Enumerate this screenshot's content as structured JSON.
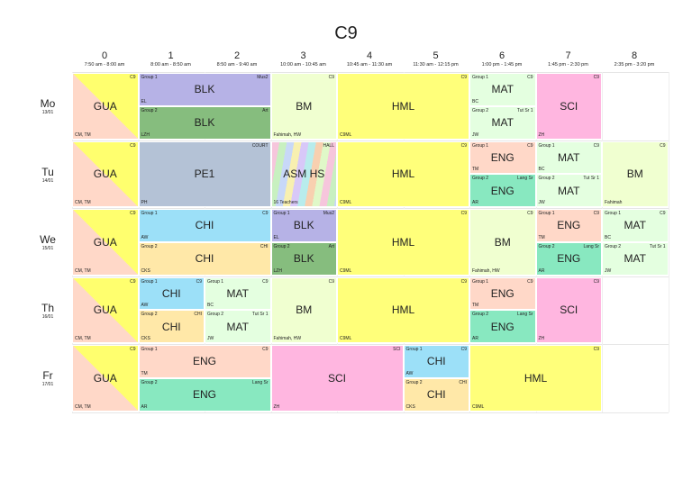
{
  "title": "C9",
  "colors": {
    "gua_top": "#ffff6e",
    "gua_bottom": "#ffd8c8",
    "blk": "#b6b2e6",
    "blk2": "#86bd7e",
    "bm": "#f0ffd0",
    "hml": "#ffff7a",
    "mat": "#e4ffe0",
    "sci": "#ffb6e0",
    "pe": "#b4c2d6",
    "eng_top": "#ffd8c8",
    "eng_bottom": "#88e8c0",
    "chi_top": "#9ce0f8",
    "chi_bottom": "#ffe8a8"
  },
  "periods": [
    {
      "num": "0",
      "time": "7:50 am - 8:00 am"
    },
    {
      "num": "1",
      "time": "8:00 am - 8:50 am"
    },
    {
      "num": "2",
      "time": "8:50 am - 9:40 am"
    },
    {
      "num": "3",
      "time": "10:00 am - 10:45 am"
    },
    {
      "num": "4",
      "time": "10:45 am - 11:30 am"
    },
    {
      "num": "5",
      "time": "11:30 am - 12:15 pm"
    },
    {
      "num": "6",
      "time": "1:00 pm - 1:45 pm"
    },
    {
      "num": "7",
      "time": "1:45 pm - 2:30 pm"
    },
    {
      "num": "8",
      "time": "2:35 pm - 3:20 pm"
    }
  ],
  "days": [
    {
      "day": "Mo",
      "date": "13/01"
    },
    {
      "day": "Tu",
      "date": "14/01"
    },
    {
      "day": "We",
      "date": "15/01"
    },
    {
      "day": "Th",
      "date": "16/01"
    },
    {
      "day": "Fr",
      "date": "17/01"
    }
  ],
  "cells": [
    {
      "day": 0,
      "col": 0,
      "span": 1,
      "half": "full",
      "subj": "GUA",
      "fill": "gua",
      "tl": "",
      "tr": "C9",
      "bl": "CM, TM"
    },
    {
      "day": 0,
      "col": 1,
      "span": 2,
      "half": "top",
      "subj": "BLK",
      "fill": "blk",
      "tl": "Group 1",
      "tr": "Mus2",
      "bl": "EL"
    },
    {
      "day": 0,
      "col": 1,
      "span": 2,
      "half": "bottom",
      "subj": "BLK",
      "fill": "blk2",
      "tl": "Group 2",
      "tr": "Art",
      "bl": "LZH"
    },
    {
      "day": 0,
      "col": 3,
      "span": 1,
      "half": "full",
      "subj": "BM",
      "fill": "bm",
      "tl": "",
      "tr": "C9",
      "bl": "Fahimah, HW"
    },
    {
      "day": 0,
      "col": 4,
      "span": 2,
      "half": "full",
      "subj": "HML",
      "fill": "hml",
      "tl": "",
      "tr": "C9",
      "bl": "C9ML"
    },
    {
      "day": 0,
      "col": 6,
      "span": 1,
      "half": "top",
      "subj": "MAT",
      "fill": "mat",
      "tl": "Group 1",
      "tr": "C9",
      "bl": "BC"
    },
    {
      "day": 0,
      "col": 6,
      "span": 1,
      "half": "bottom",
      "subj": "MAT",
      "fill": "mat",
      "tl": "Group 2",
      "tr": "Tut Sr 1",
      "bl": "JW"
    },
    {
      "day": 0,
      "col": 7,
      "span": 1,
      "half": "full",
      "subj": "SCI",
      "fill": "sci",
      "tl": "",
      "tr": "C9",
      "bl": "ZH"
    },
    {
      "day": 1,
      "col": 0,
      "span": 1,
      "half": "full",
      "subj": "GUA",
      "fill": "gua",
      "tl": "",
      "tr": "C9",
      "bl": "CM, TM"
    },
    {
      "day": 1,
      "col": 1,
      "span": 2,
      "half": "full",
      "subj": "PE1",
      "fill": "pe",
      "tl": "",
      "tr": "COURT",
      "bl": "PH"
    },
    {
      "day": 1,
      "col": 3,
      "span": 1,
      "half": "full",
      "subj": "ASM HS",
      "fill": "stripes",
      "tl": "",
      "tr": "HALL",
      "bl": "16 Teachers"
    },
    {
      "day": 1,
      "col": 4,
      "span": 2,
      "half": "full",
      "subj": "HML",
      "fill": "hml",
      "tl": "",
      "tr": "C9",
      "bl": "C9ML"
    },
    {
      "day": 1,
      "col": 6,
      "span": 1,
      "half": "top",
      "subj": "ENG",
      "fill": "eng_top",
      "tl": "Group 1",
      "tr": "C9",
      "bl": "TM"
    },
    {
      "day": 1,
      "col": 6,
      "span": 1,
      "half": "bottom",
      "subj": "ENG",
      "fill": "eng_bottom",
      "tl": "Group 2",
      "tr": "Lang Sr",
      "bl": "AR"
    },
    {
      "day": 1,
      "col": 7,
      "span": 1,
      "half": "top",
      "subj": "MAT",
      "fill": "mat",
      "tl": "Group 1",
      "tr": "C9",
      "bl": "BC"
    },
    {
      "day": 1,
      "col": 7,
      "span": 1,
      "half": "bottom",
      "subj": "MAT",
      "fill": "mat",
      "tl": "Group 2",
      "tr": "Tut Sr 1",
      "bl": "JW"
    },
    {
      "day": 1,
      "col": 8,
      "span": 1,
      "half": "full",
      "subj": "BM",
      "fill": "bm",
      "tl": "",
      "tr": "C9",
      "bl": "Fahimah"
    },
    {
      "day": 2,
      "col": 0,
      "span": 1,
      "half": "full",
      "subj": "GUA",
      "fill": "gua",
      "tl": "",
      "tr": "C9",
      "bl": "CM, TM"
    },
    {
      "day": 2,
      "col": 1,
      "span": 2,
      "half": "top",
      "subj": "CHI",
      "fill": "chi_top",
      "tl": "Group 1",
      "tr": "C9",
      "bl": "AW"
    },
    {
      "day": 2,
      "col": 1,
      "span": 2,
      "half": "bottom",
      "subj": "CHI",
      "fill": "chi_bottom",
      "tl": "Group 2",
      "tr": "CHI",
      "bl": "CKS"
    },
    {
      "day": 2,
      "col": 3,
      "span": 1,
      "half": "top",
      "subj": "BLK",
      "fill": "blk",
      "tl": "Group 1",
      "tr": "Mus2",
      "bl": "EL"
    },
    {
      "day": 2,
      "col": 3,
      "span": 1,
      "half": "bottom",
      "subj": "BLK",
      "fill": "blk2",
      "tl": "Group 2",
      "tr": "Art",
      "bl": "LZH"
    },
    {
      "day": 2,
      "col": 4,
      "span": 2,
      "half": "full",
      "subj": "HML",
      "fill": "hml",
      "tl": "",
      "tr": "C9",
      "bl": "C9ML"
    },
    {
      "day": 2,
      "col": 6,
      "span": 1,
      "half": "full",
      "subj": "BM",
      "fill": "bm",
      "tl": "",
      "tr": "C9",
      "bl": "Fahimah, HW"
    },
    {
      "day": 2,
      "col": 7,
      "span": 1,
      "half": "top",
      "subj": "ENG",
      "fill": "eng_top",
      "tl": "Group 1",
      "tr": "C9",
      "bl": "TM"
    },
    {
      "day": 2,
      "col": 7,
      "span": 1,
      "half": "bottom",
      "subj": "ENG",
      "fill": "eng_bottom",
      "tl": "Group 2",
      "tr": "Lang Sr",
      "bl": "AR"
    },
    {
      "day": 2,
      "col": 8,
      "span": 1,
      "half": "top",
      "subj": "MAT",
      "fill": "mat",
      "tl": "Group 1",
      "tr": "C9",
      "bl": "BC"
    },
    {
      "day": 2,
      "col": 8,
      "span": 1,
      "half": "bottom",
      "subj": "MAT",
      "fill": "mat",
      "tl": "Group 2",
      "tr": "Tut Sr 1",
      "bl": "JW"
    },
    {
      "day": 3,
      "col": 0,
      "span": 1,
      "half": "full",
      "subj": "GUA",
      "fill": "gua",
      "tl": "",
      "tr": "C9",
      "bl": "CM, TM"
    },
    {
      "day": 3,
      "col": 1,
      "span": 1,
      "half": "top",
      "subj": "CHI",
      "fill": "chi_top",
      "tl": "Group 1",
      "tr": "C9",
      "bl": "AW"
    },
    {
      "day": 3,
      "col": 1,
      "span": 1,
      "half": "bottom",
      "subj": "CHI",
      "fill": "chi_bottom",
      "tl": "Group 2",
      "tr": "CHI",
      "bl": "CKS"
    },
    {
      "day": 3,
      "col": 2,
      "span": 1,
      "half": "top",
      "subj": "MAT",
      "fill": "mat",
      "tl": "Group 1",
      "tr": "C9",
      "bl": "BC"
    },
    {
      "day": 3,
      "col": 2,
      "span": 1,
      "half": "bottom",
      "subj": "MAT",
      "fill": "mat",
      "tl": "Group 2",
      "tr": "Tut Sr 1",
      "bl": "JW"
    },
    {
      "day": 3,
      "col": 3,
      "span": 1,
      "half": "full",
      "subj": "BM",
      "fill": "bm",
      "tl": "",
      "tr": "C9",
      "bl": "Fahimah, HW"
    },
    {
      "day": 3,
      "col": 4,
      "span": 2,
      "half": "full",
      "subj": "HML",
      "fill": "hml",
      "tl": "",
      "tr": "C9",
      "bl": "C9ML"
    },
    {
      "day": 3,
      "col": 6,
      "span": 1,
      "half": "top",
      "subj": "ENG",
      "fill": "eng_top",
      "tl": "Group 1",
      "tr": "C9",
      "bl": "TM"
    },
    {
      "day": 3,
      "col": 6,
      "span": 1,
      "half": "bottom",
      "subj": "ENG",
      "fill": "eng_bottom",
      "tl": "Group 2",
      "tr": "Lang Sr",
      "bl": "AR"
    },
    {
      "day": 3,
      "col": 7,
      "span": 1,
      "half": "full",
      "subj": "SCI",
      "fill": "sci",
      "tl": "",
      "tr": "C9",
      "bl": "ZH"
    },
    {
      "day": 4,
      "col": 0,
      "span": 1,
      "half": "full",
      "subj": "GUA",
      "fill": "gua",
      "tl": "",
      "tr": "C9",
      "bl": "CM, TM"
    },
    {
      "day": 4,
      "col": 1,
      "span": 2,
      "half": "top",
      "subj": "ENG",
      "fill": "eng_top",
      "tl": "Group 1",
      "tr": "C9",
      "bl": "TM"
    },
    {
      "day": 4,
      "col": 1,
      "span": 2,
      "half": "bottom",
      "subj": "ENG",
      "fill": "eng_bottom",
      "tl": "Group 2",
      "tr": "Lang Sr",
      "bl": "AR"
    },
    {
      "day": 4,
      "col": 3,
      "span": 2,
      "half": "full",
      "subj": "SCI",
      "fill": "sci",
      "tl": "",
      "tr": "SCI",
      "bl": "ZH"
    },
    {
      "day": 4,
      "col": 5,
      "span": 1,
      "half": "top",
      "subj": "CHI",
      "fill": "chi_top",
      "tl": "Group 1",
      "tr": "C9",
      "bl": "AW"
    },
    {
      "day": 4,
      "col": 5,
      "span": 1,
      "half": "bottom",
      "subj": "CHI",
      "fill": "chi_bottom",
      "tl": "Group 2",
      "tr": "CHI",
      "bl": "CKS"
    },
    {
      "day": 4,
      "col": 6,
      "span": 2,
      "half": "full",
      "subj": "HML",
      "fill": "hml",
      "tl": "",
      "tr": "C9",
      "bl": "C9ML"
    }
  ]
}
